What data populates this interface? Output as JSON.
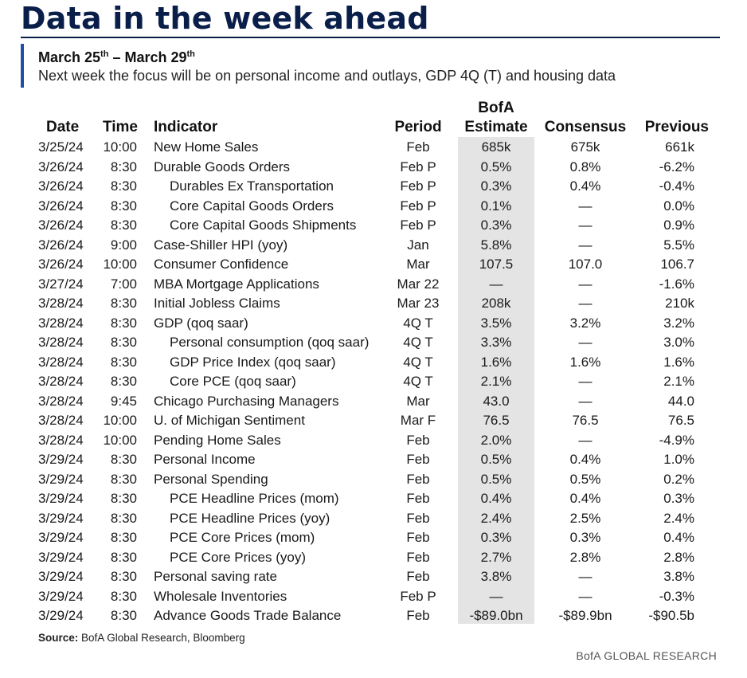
{
  "header": {
    "title": "Data in the week ahead",
    "date_from": "March 25",
    "date_from_sup": "th",
    "date_sep": " – ",
    "date_to": "March 29",
    "date_to_sup": "th",
    "subtitle": "Next week the focus will be on personal income and outlays, GDP 4Q (T) and housing data"
  },
  "colors": {
    "title": "#0a1e4a",
    "accent_bar": "#1f4fa8",
    "estimate_column_bg": "#e4e4e4"
  },
  "table": {
    "columns": {
      "date": "Date",
      "time": "Time",
      "indicator": "Indicator",
      "period": "Period",
      "estimate_line1": "BofA",
      "estimate_line2": "Estimate",
      "consensus": "Consensus",
      "previous": "Previous"
    },
    "rows": [
      {
        "date": "3/25/24",
        "time": "10:00",
        "indicator": "New Home Sales",
        "sub": false,
        "period": "Feb",
        "estimate": "685k",
        "consensus": "675k",
        "previous": "661k"
      },
      {
        "date": "3/26/24",
        "time": "8:30",
        "indicator": "Durable Goods Orders",
        "sub": false,
        "period": "Feb P",
        "estimate": "0.5%",
        "consensus": "0.8%",
        "previous": "-6.2%"
      },
      {
        "date": "3/26/24",
        "time": "8:30",
        "indicator": "Durables Ex Transportation",
        "sub": true,
        "period": "Feb P",
        "estimate": "0.3%",
        "consensus": "0.4%",
        "previous": "-0.4%"
      },
      {
        "date": "3/26/24",
        "time": "8:30",
        "indicator": "Core Capital Goods Orders",
        "sub": true,
        "period": "Feb P",
        "estimate": "0.1%",
        "consensus": "—",
        "previous": "0.0%"
      },
      {
        "date": "3/26/24",
        "time": "8:30",
        "indicator": "Core Capital Goods Shipments",
        "sub": true,
        "period": "Feb P",
        "estimate": "0.3%",
        "consensus": "—",
        "previous": "0.9%"
      },
      {
        "date": "3/26/24",
        "time": "9:00",
        "indicator": "Case-Shiller HPI (yoy)",
        "sub": false,
        "period": "Jan",
        "estimate": "5.8%",
        "consensus": "—",
        "previous": "5.5%"
      },
      {
        "date": "3/26/24",
        "time": "10:00",
        "indicator": "Consumer Confidence",
        "sub": false,
        "period": "Mar",
        "estimate": "107.5",
        "consensus": "107.0",
        "previous": "106.7"
      },
      {
        "date": "3/27/24",
        "time": "7:00",
        "indicator": "MBA Mortgage Applications",
        "sub": false,
        "period": "Mar 22",
        "estimate": "—",
        "consensus": "—",
        "previous": "-1.6%"
      },
      {
        "date": "3/28/24",
        "time": "8:30",
        "indicator": "Initial Jobless Claims",
        "sub": false,
        "period": "Mar 23",
        "estimate": "208k",
        "consensus": "—",
        "previous": "210k"
      },
      {
        "date": "3/28/24",
        "time": "8:30",
        "indicator": "GDP (qoq saar)",
        "sub": false,
        "period": "4Q T",
        "estimate": "3.5%",
        "consensus": "3.2%",
        "previous": "3.2%"
      },
      {
        "date": "3/28/24",
        "time": "8:30",
        "indicator": "Personal consumption (qoq saar)",
        "sub": true,
        "period": "4Q T",
        "estimate": "3.3%",
        "consensus": "—",
        "previous": "3.0%"
      },
      {
        "date": "3/28/24",
        "time": "8:30",
        "indicator": "GDP Price Index (qoq saar)",
        "sub": true,
        "period": "4Q T",
        "estimate": "1.6%",
        "consensus": "1.6%",
        "previous": "1.6%"
      },
      {
        "date": "3/28/24",
        "time": "8:30",
        "indicator": "Core PCE (qoq saar)",
        "sub": true,
        "period": "4Q T",
        "estimate": "2.1%",
        "consensus": "—",
        "previous": "2.1%"
      },
      {
        "date": "3/28/24",
        "time": "9:45",
        "indicator": "Chicago Purchasing Managers",
        "sub": false,
        "period": "Mar",
        "estimate": "43.0",
        "consensus": "—",
        "previous": "44.0"
      },
      {
        "date": "3/28/24",
        "time": "10:00",
        "indicator": "U. of Michigan Sentiment",
        "sub": false,
        "period": "Mar F",
        "estimate": "76.5",
        "consensus": "76.5",
        "previous": "76.5"
      },
      {
        "date": "3/28/24",
        "time": "10:00",
        "indicator": "Pending Home Sales",
        "sub": false,
        "period": "Feb",
        "estimate": "2.0%",
        "consensus": "—",
        "previous": "-4.9%"
      },
      {
        "date": "3/29/24",
        "time": "8:30",
        "indicator": "Personal Income",
        "sub": false,
        "period": "Feb",
        "estimate": "0.5%",
        "consensus": "0.4%",
        "previous": "1.0%"
      },
      {
        "date": "3/29/24",
        "time": "8:30",
        "indicator": "Personal Spending",
        "sub": false,
        "period": "Feb",
        "estimate": "0.5%",
        "consensus": "0.5%",
        "previous": "0.2%"
      },
      {
        "date": "3/29/24",
        "time": "8:30",
        "indicator": "PCE Headline Prices (mom)",
        "sub": true,
        "period": "Feb",
        "estimate": "0.4%",
        "consensus": "0.4%",
        "previous": "0.3%"
      },
      {
        "date": "3/29/24",
        "time": "8:30",
        "indicator": "PCE Headline Prices (yoy)",
        "sub": true,
        "period": "Feb",
        "estimate": "2.4%",
        "consensus": "2.5%",
        "previous": "2.4%"
      },
      {
        "date": "3/29/24",
        "time": "8:30",
        "indicator": "PCE Core Prices (mom)",
        "sub": true,
        "period": "Feb",
        "estimate": "0.3%",
        "consensus": "0.3%",
        "previous": "0.4%"
      },
      {
        "date": "3/29/24",
        "time": "8:30",
        "indicator": "PCE Core Prices (yoy)",
        "sub": true,
        "period": "Feb",
        "estimate": "2.7%",
        "consensus": "2.8%",
        "previous": "2.8%"
      },
      {
        "date": "3/29/24",
        "time": "8:30",
        "indicator": "Personal saving rate",
        "sub": false,
        "period": "Feb",
        "estimate": "3.8%",
        "consensus": "—",
        "previous": "3.8%"
      },
      {
        "date": "3/29/24",
        "time": "8:30",
        "indicator": "Wholesale Inventories",
        "sub": false,
        "period": "Feb P",
        "estimate": "—",
        "consensus": "—",
        "previous": "-0.3%"
      },
      {
        "date": "3/29/24",
        "time": "8:30",
        "indicator": "Advance Goods Trade Balance",
        "sub": false,
        "period": "Feb",
        "estimate": "-$89.0bn",
        "consensus": "-$89.9bn",
        "previous": "-$90.5b"
      }
    ]
  },
  "footer": {
    "source_label": "Source:",
    "source_text": " BofA Global Research, Bloomberg",
    "brand": "BofA GLOBAL RESEARCH"
  }
}
